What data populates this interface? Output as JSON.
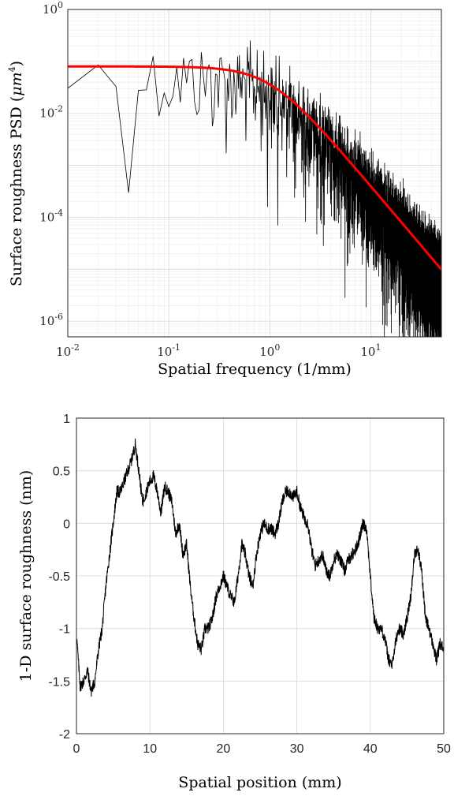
{
  "chart_data": [
    {
      "type": "line",
      "xscale": "log",
      "yscale": "log",
      "xlim": [
        0.01,
        50
      ],
      "ylim": [
        5e-07,
        1
      ],
      "xticks": [
        0.01,
        0.1,
        1,
        10
      ],
      "xtick_labels": [
        {
          "base": "10",
          "exp": "-2"
        },
        {
          "base": "10",
          "exp": "-1"
        },
        {
          "base": "10",
          "exp": "0"
        },
        {
          "base": "10",
          "exp": "1"
        }
      ],
      "yticks": [
        1,
        0.01,
        0.0001,
        1e-06
      ],
      "ytick_labels": [
        {
          "base": "10",
          "exp": "0"
        },
        {
          "base": "10",
          "exp": "-2"
        },
        {
          "base": "10",
          "exp": "-4"
        },
        {
          "base": "10",
          "exp": "-6"
        }
      ],
      "xlabel": "Spatial frequency (1/mm)",
      "ylabel": {
        "text": "Surface roughness PSD (",
        "unit": "μm",
        "unit_exp": "4",
        "close": ")"
      },
      "grid": true,
      "minor_grid": true,
      "series": [
        {
          "color": "#000000",
          "line_width": 1,
          "description": "measured PSD (noisy)"
        },
        {
          "color": "#ff0000",
          "line_width": 3,
          "description": "fitted PSD model",
          "plateau": 0.08,
          "corner_frequency": 1.0,
          "slope": -2.3
        }
      ]
    },
    {
      "type": "line",
      "xlim": [
        0,
        50
      ],
      "ylim": [
        -2,
        1
      ],
      "xticks": [
        0,
        10,
        20,
        30,
        40,
        50
      ],
      "xtick_labels": [
        "0",
        "10",
        "20",
        "30",
        "40",
        "50"
      ],
      "yticks": [
        1,
        0.5,
        0,
        -0.5,
        -1,
        -1.5,
        -2
      ],
      "ytick_labels": [
        "1",
        "0.5",
        "0",
        "-0.5",
        "-1",
        "-1.5",
        "-2"
      ],
      "xlabel": "Spatial position (mm)",
      "ylabel": "1-D surface roughness (nm)",
      "grid": true,
      "series": [
        {
          "color": "#000000",
          "x": [
            0,
            0.5,
            1,
            1.5,
            2,
            2.5,
            3,
            3.5,
            4,
            4.5,
            5,
            5.5,
            6,
            6.5,
            7,
            7.5,
            8,
            8.5,
            9,
            9.5,
            10,
            10.5,
            11,
            11.5,
            12,
            12.5,
            13,
            13.5,
            14,
            14.5,
            15,
            15.5,
            16,
            16.5,
            17,
            17.5,
            18,
            18.5,
            19,
            19.5,
            20,
            20.5,
            21,
            21.5,
            22,
            22.5,
            23,
            23.5,
            24,
            24.5,
            25,
            25.5,
            26,
            26.5,
            27,
            27.5,
            28,
            28.5,
            29,
            29.5,
            30,
            30.5,
            31,
            31.5,
            32,
            32.5,
            33,
            33.5,
            34,
            34.5,
            35,
            35.5,
            36,
            36.5,
            37,
            37.5,
            38,
            38.5,
            39,
            39.5,
            40,
            40.5,
            41,
            41.5,
            42,
            42.5,
            43,
            43.5,
            44,
            44.5,
            45,
            45.5,
            46,
            46.5,
            47,
            47.5,
            48,
            48.5,
            49,
            49.5,
            50
          ],
          "y": [
            -1.05,
            -1.55,
            -1.5,
            -1.4,
            -1.6,
            -1.5,
            -1.2,
            -1.0,
            -0.6,
            -0.3,
            0.0,
            0.3,
            0.3,
            0.4,
            0.5,
            0.6,
            0.75,
            0.5,
            0.2,
            0.3,
            0.4,
            0.45,
            0.3,
            0.1,
            0.35,
            0.3,
            0.2,
            -0.1,
            0.0,
            -0.3,
            -0.2,
            -0.6,
            -0.9,
            -1.15,
            -1.2,
            -1.0,
            -1.0,
            -0.9,
            -0.7,
            -0.6,
            -0.5,
            -0.6,
            -0.7,
            -0.75,
            -0.5,
            -0.2,
            -0.3,
            -0.5,
            -0.6,
            -0.3,
            -0.1,
            0.0,
            -0.05,
            -0.05,
            -0.1,
            0.0,
            0.2,
            0.3,
            0.3,
            0.25,
            0.3,
            0.15,
            0.05,
            0.0,
            -0.25,
            -0.4,
            -0.35,
            -0.3,
            -0.45,
            -0.5,
            -0.35,
            -0.3,
            -0.35,
            -0.45,
            -0.35,
            -0.3,
            -0.25,
            -0.15,
            0.0,
            -0.05,
            -0.5,
            -0.9,
            -1.0,
            -1.0,
            -1.1,
            -1.3,
            -1.35,
            -1.1,
            -1.0,
            -1.05,
            -0.9,
            -0.7,
            -0.3,
            -0.25,
            -0.45,
            -0.9,
            -1.0,
            -1.15,
            -1.3,
            -1.15,
            -1.2
          ]
        }
      ]
    }
  ]
}
